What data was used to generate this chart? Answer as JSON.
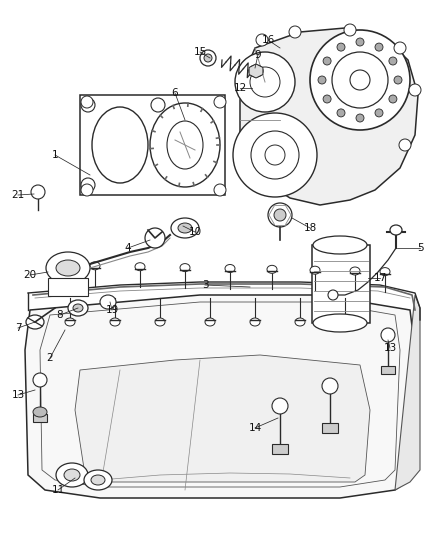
{
  "bg_color": "#f0f0f0",
  "line_color": "#2a2a2a",
  "label_color": "#111111",
  "fig_width": 4.38,
  "fig_height": 5.33,
  "dpi": 100,
  "aspect": [
    438,
    533
  ]
}
